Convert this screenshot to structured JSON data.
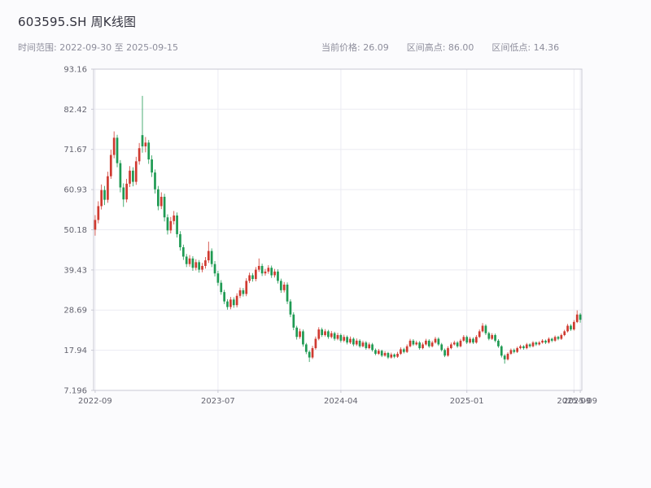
{
  "header": {
    "title": "603595.SH 周K线图",
    "date_range_label": "时间范围: 2022-09-30 至 2025-09-15",
    "current_price_label": "当前价格: 26.09",
    "range_high_label": "区间高点: 86.00",
    "range_low_label": "区间低点: 14.36"
  },
  "chart_data": {
    "type": "candlestick",
    "title": "603595.SH 周K线图",
    "interval": "weekly",
    "date_start": "2022-09-30",
    "date_end": "2025-09-15",
    "current_price": 26.09,
    "range_high": 86.0,
    "range_low": 14.36,
    "ylim": [
      7.196,
      93.16
    ],
    "y_ticks": [
      "7.196",
      "17.94",
      "28.69",
      "39.43",
      "50.18",
      "60.93",
      "71.67",
      "82.42",
      "93.16"
    ],
    "x_ticks": [
      {
        "label": "2022-09",
        "index": 0
      },
      {
        "label": "2023-07",
        "index": 39
      },
      {
        "label": "2024-04",
        "index": 78
      },
      {
        "label": "2025-01",
        "index": 118
      },
      {
        "label": "2025-09",
        "index": 152
      },
      {
        "label": "2025-09",
        "index": 154
      }
    ],
    "grid": true,
    "up_color": "#cf3a30",
    "down_color": "#1f9a53",
    "axis_color": "#c9c9d4",
    "grid_color": "#ebebf2",
    "tick_label_color": "#63636f",
    "candles": [
      [
        50.2,
        54.1,
        48.6,
        52.8
      ],
      [
        52.8,
        57.8,
        51.9,
        56.5
      ],
      [
        56.5,
        62.3,
        55.6,
        60.8
      ],
      [
        60.8,
        61.9,
        56.8,
        58.2
      ],
      [
        58.2,
        65.7,
        57.4,
        64.5
      ],
      [
        64.5,
        71.6,
        63.8,
        70.2
      ],
      [
        70.2,
        76.5,
        69.3,
        74.8
      ],
      [
        74.8,
        75.6,
        66.9,
        68.0
      ],
      [
        68.0,
        68.8,
        60.2,
        61.5
      ],
      [
        61.5,
        62.6,
        56.3,
        58.3
      ],
      [
        58.3,
        63.8,
        57.5,
        62.5
      ],
      [
        62.5,
        67.2,
        61.6,
        66.0
      ],
      [
        66.0,
        66.9,
        61.8,
        63.0
      ],
      [
        63.0,
        69.7,
        62.2,
        68.5
      ],
      [
        68.5,
        73.4,
        67.6,
        72.0
      ],
      [
        75.5,
        86.0,
        70.8,
        72.5
      ],
      [
        72.5,
        75.0,
        70.9,
        73.5
      ],
      [
        73.5,
        74.2,
        67.8,
        69.0
      ],
      [
        69.0,
        70.1,
        64.3,
        65.5
      ],
      [
        65.5,
        66.3,
        59.9,
        61.0
      ],
      [
        61.0,
        61.9,
        55.4,
        56.5
      ],
      [
        56.5,
        60.2,
        55.7,
        59.0
      ],
      [
        59.0,
        59.8,
        52.4,
        53.5
      ],
      [
        53.5,
        54.3,
        48.9,
        50.0
      ],
      [
        50.0,
        53.6,
        49.2,
        52.5
      ],
      [
        52.5,
        55.2,
        51.6,
        54.0
      ],
      [
        54.0,
        54.8,
        48.1,
        49.0
      ],
      [
        49.0,
        49.8,
        44.6,
        45.5
      ],
      [
        45.5,
        46.2,
        42.1,
        43.0
      ],
      [
        43.0,
        43.7,
        40.2,
        41.0
      ],
      [
        41.0,
        43.4,
        40.3,
        42.5
      ],
      [
        42.5,
        43.1,
        39.2,
        40.0
      ],
      [
        40.0,
        42.3,
        39.3,
        41.5
      ],
      [
        41.5,
        42.1,
        38.7,
        39.5
      ],
      [
        39.5,
        41.3,
        38.8,
        40.5
      ],
      [
        40.5,
        42.9,
        39.8,
        42.0
      ],
      [
        42.0,
        47.0,
        41.3,
        44.5
      ],
      [
        44.5,
        45.2,
        40.2,
        41.0
      ],
      [
        41.0,
        41.8,
        37.7,
        38.5
      ],
      [
        38.5,
        39.2,
        35.2,
        36.0
      ],
      [
        36.0,
        36.7,
        32.8,
        33.5
      ],
      [
        33.5,
        34.1,
        30.3,
        31.0
      ],
      [
        31.0,
        31.6,
        28.8,
        29.5
      ],
      [
        29.5,
        32.2,
        28.9,
        31.5
      ],
      [
        31.5,
        32.1,
        29.3,
        30.0
      ],
      [
        30.0,
        33.2,
        29.4,
        32.5
      ],
      [
        32.5,
        34.7,
        31.9,
        34.0
      ],
      [
        34.0,
        34.6,
        32.3,
        33.0
      ],
      [
        33.0,
        37.2,
        32.4,
        36.5
      ],
      [
        36.5,
        38.7,
        35.9,
        38.0
      ],
      [
        38.0,
        38.6,
        36.3,
        37.0
      ],
      [
        37.0,
        40.2,
        36.4,
        39.5
      ],
      [
        39.5,
        42.5,
        38.9,
        40.5
      ],
      [
        40.5,
        41.1,
        37.8,
        38.5
      ],
      [
        38.5,
        39.7,
        37.9,
        39.0
      ],
      [
        39.0,
        40.7,
        38.4,
        40.0
      ],
      [
        40.0,
        40.6,
        37.3,
        38.0
      ],
      [
        38.0,
        39.7,
        37.4,
        39.0
      ],
      [
        39.0,
        39.6,
        35.8,
        36.5
      ],
      [
        36.5,
        37.1,
        33.3,
        34.0
      ],
      [
        34.0,
        36.2,
        33.4,
        35.5
      ],
      [
        35.5,
        36.1,
        30.3,
        31.0
      ],
      [
        31.0,
        31.6,
        26.8,
        27.5
      ],
      [
        27.5,
        28.1,
        23.3,
        24.0
      ],
      [
        24.0,
        24.5,
        20.8,
        21.5
      ],
      [
        21.5,
        23.7,
        21.0,
        23.0
      ],
      [
        23.0,
        23.5,
        18.9,
        19.5
      ],
      [
        19.5,
        19.9,
        16.9,
        17.5
      ],
      [
        17.5,
        17.9,
        14.8,
        16.0
      ],
      [
        16.0,
        19.1,
        15.6,
        18.5
      ],
      [
        18.5,
        21.6,
        18.1,
        21.0
      ],
      [
        21.0,
        24.1,
        20.6,
        23.5
      ],
      [
        23.5,
        24.0,
        21.5,
        22.0
      ],
      [
        22.0,
        23.6,
        21.6,
        23.0
      ],
      [
        23.0,
        23.4,
        21.0,
        21.5
      ],
      [
        21.5,
        23.1,
        21.1,
        22.5
      ],
      [
        22.5,
        22.9,
        20.5,
        21.0
      ],
      [
        21.0,
        22.6,
        20.6,
        22.0
      ],
      [
        22.0,
        22.4,
        20.0,
        20.5
      ],
      [
        20.5,
        22.1,
        20.1,
        21.5
      ],
      [
        21.5,
        21.9,
        19.5,
        20.0
      ],
      [
        20.0,
        21.6,
        19.6,
        21.0
      ],
      [
        21.0,
        21.4,
        19.0,
        19.5
      ],
      [
        19.5,
        21.1,
        19.1,
        20.5
      ],
      [
        20.5,
        20.9,
        18.6,
        19.0
      ],
      [
        19.0,
        20.5,
        18.7,
        20.0
      ],
      [
        20.0,
        20.4,
        18.1,
        18.5
      ],
      [
        18.5,
        20.0,
        18.2,
        19.5
      ],
      [
        19.5,
        19.9,
        17.6,
        18.0
      ],
      [
        18.0,
        18.4,
        16.6,
        17.0
      ],
      [
        17.0,
        18.3,
        16.7,
        17.8
      ],
      [
        17.8,
        18.1,
        16.1,
        16.5
      ],
      [
        16.5,
        17.7,
        16.2,
        17.2
      ],
      [
        17.2,
        17.5,
        15.6,
        16.0
      ],
      [
        16.0,
        17.3,
        15.7,
        16.8
      ],
      [
        16.8,
        17.1,
        15.8,
        16.2
      ],
      [
        16.2,
        17.5,
        15.9,
        17.0
      ],
      [
        17.0,
        18.7,
        16.7,
        18.2
      ],
      [
        18.2,
        18.6,
        17.1,
        17.5
      ],
      [
        17.5,
        19.5,
        17.2,
        19.0
      ],
      [
        19.0,
        21.0,
        18.7,
        20.5
      ],
      [
        20.5,
        20.9,
        19.1,
        19.5
      ],
      [
        19.5,
        20.5,
        19.2,
        20.0
      ],
      [
        20.0,
        20.4,
        18.1,
        18.5
      ],
      [
        18.5,
        20.0,
        18.2,
        19.5
      ],
      [
        19.5,
        21.0,
        19.2,
        20.5
      ],
      [
        20.5,
        20.9,
        18.6,
        19.0
      ],
      [
        19.0,
        20.5,
        18.7,
        20.0
      ],
      [
        20.0,
        21.5,
        19.7,
        21.0
      ],
      [
        21.0,
        21.4,
        19.1,
        19.5
      ],
      [
        19.5,
        19.9,
        17.6,
        18.0
      ],
      [
        18.0,
        18.4,
        16.1,
        16.5
      ],
      [
        16.5,
        19.0,
        16.2,
        18.5
      ],
      [
        18.5,
        20.0,
        18.2,
        19.5
      ],
      [
        19.5,
        20.5,
        19.2,
        20.0
      ],
      [
        20.0,
        20.4,
        18.6,
        19.0
      ],
      [
        19.0,
        21.0,
        18.7,
        20.5
      ],
      [
        20.5,
        22.0,
        20.2,
        21.5
      ],
      [
        21.5,
        21.9,
        19.6,
        20.0
      ],
      [
        20.0,
        21.5,
        19.7,
        21.0
      ],
      [
        21.0,
        21.4,
        19.6,
        20.0
      ],
      [
        20.0,
        22.0,
        19.7,
        21.5
      ],
      [
        21.5,
        23.5,
        21.2,
        23.0
      ],
      [
        23.0,
        25.2,
        22.7,
        24.5
      ],
      [
        24.5,
        24.9,
        22.0,
        22.5
      ],
      [
        22.5,
        22.9,
        20.6,
        21.0
      ],
      [
        21.0,
        22.5,
        20.7,
        22.0
      ],
      [
        22.0,
        22.4,
        20.1,
        20.5
      ],
      [
        20.5,
        20.9,
        18.6,
        19.0
      ],
      [
        19.0,
        19.3,
        16.0,
        16.5
      ],
      [
        16.5,
        16.9,
        14.36,
        15.5
      ],
      [
        15.5,
        17.4,
        15.2,
        17.0
      ],
      [
        17.0,
        18.4,
        16.7,
        18.0
      ],
      [
        18.0,
        18.4,
        17.1,
        17.5
      ],
      [
        17.5,
        18.9,
        17.2,
        18.5
      ],
      [
        18.5,
        19.4,
        18.2,
        19.0
      ],
      [
        19.0,
        19.3,
        18.1,
        18.5
      ],
      [
        18.5,
        19.9,
        18.2,
        19.5
      ],
      [
        19.5,
        19.8,
        18.6,
        19.0
      ],
      [
        19.0,
        20.4,
        18.7,
        20.0
      ],
      [
        20.0,
        20.3,
        19.1,
        19.5
      ],
      [
        19.5,
        20.4,
        19.2,
        20.0
      ],
      [
        20.0,
        20.9,
        19.7,
        20.5
      ],
      [
        20.5,
        20.8,
        19.6,
        20.0
      ],
      [
        20.0,
        21.4,
        19.7,
        21.0
      ],
      [
        21.0,
        21.3,
        20.1,
        20.5
      ],
      [
        20.5,
        21.9,
        20.2,
        21.5
      ],
      [
        21.5,
        21.8,
        20.6,
        21.0
      ],
      [
        21.0,
        22.4,
        20.7,
        22.0
      ],
      [
        22.0,
        23.4,
        21.7,
        23.0
      ],
      [
        23.0,
        25.0,
        22.7,
        24.5
      ],
      [
        24.5,
        24.9,
        23.1,
        23.5
      ],
      [
        23.5,
        26.0,
        23.2,
        25.5
      ],
      [
        25.5,
        28.6,
        25.2,
        27.5
      ],
      [
        27.5,
        27.9,
        25.3,
        26.09
      ]
    ]
  }
}
